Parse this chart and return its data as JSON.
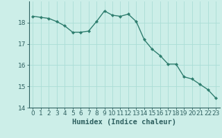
{
  "x": [
    0,
    1,
    2,
    3,
    4,
    5,
    6,
    7,
    8,
    9,
    10,
    11,
    12,
    13,
    14,
    15,
    16,
    17,
    18,
    19,
    20,
    21,
    22,
    23
  ],
  "y": [
    18.3,
    18.25,
    18.2,
    18.05,
    17.85,
    17.55,
    17.55,
    17.6,
    18.05,
    18.55,
    18.35,
    18.3,
    18.4,
    18.05,
    17.2,
    16.75,
    16.45,
    16.05,
    16.05,
    15.45,
    15.35,
    15.1,
    14.85,
    14.45
  ],
  "line_color": "#2e7d6e",
  "marker": "D",
  "marker_size": 2.2,
  "background_color": "#cceee8",
  "grid_color": "#aaddd6",
  "xlabel": "Humidex (Indice chaleur)",
  "xlabel_fontsize": 7.5,
  "tick_fontsize": 6.5,
  "ylim": [
    14,
    19
  ],
  "xlim": [
    -0.5,
    23.5
  ],
  "yticks": [
    14,
    15,
    16,
    17,
    18
  ],
  "xticks": [
    0,
    1,
    2,
    3,
    4,
    5,
    6,
    7,
    8,
    9,
    10,
    11,
    12,
    13,
    14,
    15,
    16,
    17,
    18,
    19,
    20,
    21,
    22,
    23
  ],
  "line_width": 1.0,
  "tick_color": "#2e6060",
  "spine_color": "#2e6060"
}
